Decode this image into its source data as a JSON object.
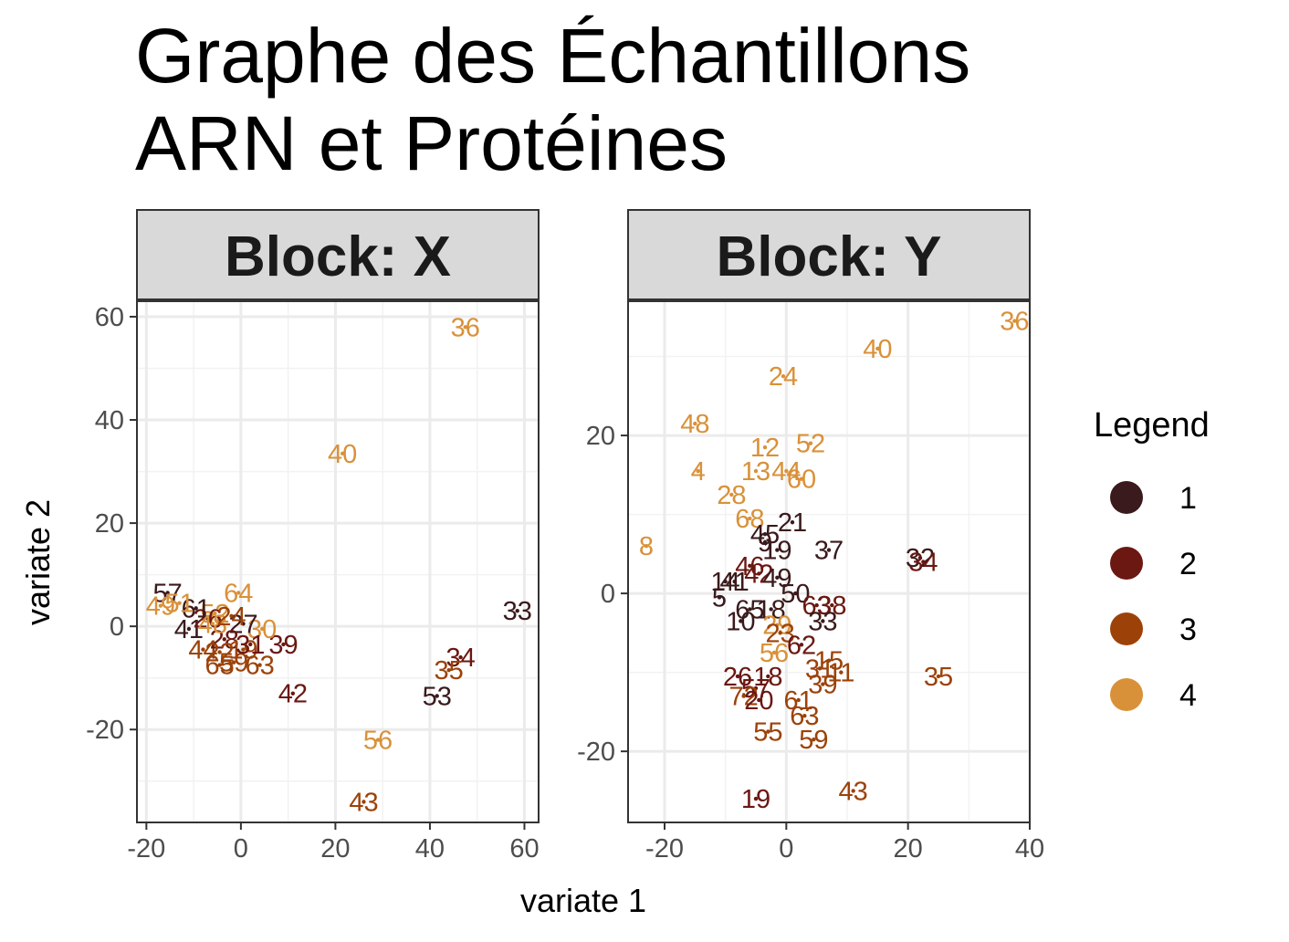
{
  "chart_data": {
    "type": "scatter",
    "title_lines": [
      "Graphe des Échantillons",
      "ARN et Protéines"
    ],
    "xlabel": "variate 1",
    "ylabel": "variate 2",
    "grid": true,
    "legend": {
      "title": "Legend",
      "placement": "right",
      "entries": [
        {
          "label": "1",
          "color": "#3a1a1c"
        },
        {
          "label": "2",
          "color": "#6b1712"
        },
        {
          "label": "3",
          "color": "#9c4209"
        },
        {
          "label": "4",
          "color": "#d99139"
        }
      ]
    },
    "panels": [
      {
        "strip": "Block: X",
        "xlim": [
          -22,
          63
        ],
        "ylim": [
          -38,
          63
        ],
        "xticks": [
          -20,
          0,
          20,
          40,
          60
        ],
        "xtick_labels": [
          "-20",
          "0",
          "20",
          "40",
          "60"
        ],
        "yticks": [
          -20,
          0,
          20,
          40,
          60
        ],
        "ytick_labels": [
          "-20",
          "0",
          "20",
          "40",
          "60"
        ],
        "points": [
          {
            "label": "36",
            "x": 47.5,
            "y": 58,
            "group": 4
          },
          {
            "label": "40",
            "x": 21.5,
            "y": 33.5,
            "group": 4
          },
          {
            "label": "33",
            "x": 58.5,
            "y": 3,
            "group": 1
          },
          {
            "label": "34",
            "x": 46.5,
            "y": -6,
            "group": 2
          },
          {
            "label": "35",
            "x": 44,
            "y": -8.5,
            "group": 3
          },
          {
            "label": "53",
            "x": 41.5,
            "y": -13.5,
            "group": 1
          },
          {
            "label": "42",
            "x": 11,
            "y": -13,
            "group": 2
          },
          {
            "label": "56",
            "x": 29,
            "y": -22,
            "group": 4
          },
          {
            "label": "43",
            "x": 26,
            "y": -34,
            "group": 3
          },
          {
            "label": "39",
            "x": 9,
            "y": -3.5,
            "group": 2
          },
          {
            "label": "30",
            "x": 4.5,
            "y": -0.5,
            "group": 4
          },
          {
            "label": "63",
            "x": 4,
            "y": -7.5,
            "group": 3
          },
          {
            "label": "64",
            "x": -0.5,
            "y": 6.5,
            "group": 4
          },
          {
            "label": "57",
            "x": -15.5,
            "y": 6.5,
            "group": 1
          },
          {
            "label": "49",
            "x": -17,
            "y": 4,
            "group": 4
          },
          {
            "label": "41",
            "x": -11,
            "y": -0.5,
            "group": 1
          },
          {
            "label": "44",
            "x": -8,
            "y": -4.5,
            "group": 3
          },
          {
            "label": "65",
            "x": -4.5,
            "y": -7.5,
            "group": 3
          },
          {
            "label": "59",
            "x": -1.5,
            "y": -7,
            "group": 3
          },
          {
            "label": "27",
            "x": 0.5,
            "y": 0.5,
            "group": 1
          },
          {
            "label": "52",
            "x": -5.5,
            "y": 2.5,
            "group": 4
          },
          {
            "label": "26",
            "x": -7,
            "y": 1.5,
            "group": 2
          },
          {
            "label": "28",
            "x": -3.5,
            "y": -2.5,
            "group": 2
          },
          {
            "label": "19",
            "x": 0.5,
            "y": -4.5,
            "group": 3
          },
          {
            "label": "61",
            "x": -9.5,
            "y": 3.5,
            "group": 1
          },
          {
            "label": "48",
            "x": -6,
            "y": 0.5,
            "group": 4
          },
          {
            "label": "24",
            "x": -2,
            "y": 2,
            "group": 3
          },
          {
            "label": "31",
            "x": 2,
            "y": -3.5,
            "group": 2
          },
          {
            "label": "22",
            "x": -4.5,
            "y": -5,
            "group": 3
          },
          {
            "label": "51",
            "x": -13,
            "y": 4.5,
            "group": 4
          }
        ]
      },
      {
        "strip": "Block: Y",
        "xlim": [
          -26,
          40
        ],
        "ylim": [
          -29,
          37
        ],
        "xticks": [
          -20,
          0,
          20,
          40
        ],
        "xtick_labels": [
          "-20",
          "0",
          "20",
          "40"
        ],
        "yticks": [
          -20,
          0,
          20
        ],
        "ytick_labels": [
          "-20",
          "0",
          "20"
        ],
        "points": [
          {
            "label": "36",
            "x": 37.5,
            "y": 34.5,
            "group": 4
          },
          {
            "label": "40",
            "x": 15,
            "y": 31,
            "group": 4
          },
          {
            "label": "24",
            "x": -0.5,
            "y": 27.5,
            "group": 4
          },
          {
            "label": "48",
            "x": -15,
            "y": 21.5,
            "group": 4
          },
          {
            "label": "52",
            "x": 4,
            "y": 19,
            "group": 4
          },
          {
            "label": "12",
            "x": -3.5,
            "y": 18.5,
            "group": 4
          },
          {
            "label": "4",
            "x": -14.5,
            "y": 15.5,
            "group": 4
          },
          {
            "label": "13",
            "x": -5,
            "y": 15.5,
            "group": 4
          },
          {
            "label": "44",
            "x": 0,
            "y": 15.5,
            "group": 4
          },
          {
            "label": "60",
            "x": 2.5,
            "y": 14.5,
            "group": 4
          },
          {
            "label": "28",
            "x": -9,
            "y": 12.5,
            "group": 4
          },
          {
            "label": "68",
            "x": -6,
            "y": 9.5,
            "group": 4
          },
          {
            "label": "21",
            "x": 1,
            "y": 9,
            "group": 1
          },
          {
            "label": "45",
            "x": -3.5,
            "y": 7.5,
            "group": 1
          },
          {
            "label": "8",
            "x": -23,
            "y": 6,
            "group": 4
          },
          {
            "label": "9",
            "x": -3.5,
            "y": 6.5,
            "group": 1
          },
          {
            "label": "19",
            "x": -1.5,
            "y": 5.5,
            "group": 1
          },
          {
            "label": "37",
            "x": 7,
            "y": 5.5,
            "group": 1
          },
          {
            "label": "32",
            "x": 22,
            "y": 4.5,
            "group": 1
          },
          {
            "label": "34",
            "x": 22.5,
            "y": 4,
            "group": 2
          },
          {
            "label": "46",
            "x": -6,
            "y": 3.5,
            "group": 2
          },
          {
            "label": "42",
            "x": -4.5,
            "y": 2.5,
            "group": 2
          },
          {
            "label": "49",
            "x": -1.5,
            "y": 2,
            "group": 1
          },
          {
            "label": "14",
            "x": -10,
            "y": 1.5,
            "group": 1
          },
          {
            "label": "41",
            "x": -8.5,
            "y": 1.5,
            "group": 1
          },
          {
            "label": "5",
            "x": -11,
            "y": -0.5,
            "group": 1
          },
          {
            "label": "50",
            "x": 1.5,
            "y": 0,
            "group": 1
          },
          {
            "label": "63",
            "x": 5,
            "y": -1.5,
            "group": 2
          },
          {
            "label": "38",
            "x": 7.5,
            "y": -1.5,
            "group": 2
          },
          {
            "label": "65",
            "x": -6,
            "y": -2,
            "group": 1
          },
          {
            "label": "18",
            "x": -2.5,
            "y": -2,
            "group": 1
          },
          {
            "label": "33",
            "x": 6,
            "y": -3.5,
            "group": 1
          },
          {
            "label": "10",
            "x": -7.5,
            "y": -3.5,
            "group": 1
          },
          {
            "label": "29",
            "x": -1.5,
            "y": -4,
            "group": 4
          },
          {
            "label": "23",
            "x": -1,
            "y": -5,
            "group": 3
          },
          {
            "label": "62",
            "x": 2.5,
            "y": -6.5,
            "group": 2
          },
          {
            "label": "56",
            "x": -2,
            "y": -7.5,
            "group": 4
          },
          {
            "label": "15",
            "x": 7,
            "y": -8.5,
            "group": 3
          },
          {
            "label": "31",
            "x": 5.5,
            "y": -9.5,
            "group": 3
          },
          {
            "label": "11",
            "x": 9,
            "y": -10,
            "group": 3
          },
          {
            "label": "35",
            "x": 25,
            "y": -10.5,
            "group": 3
          },
          {
            "label": "26",
            "x": -8,
            "y": -10.5,
            "group": 2
          },
          {
            "label": "18",
            "x": -3,
            "y": -10.5,
            "group": 2
          },
          {
            "label": "39",
            "x": 6,
            "y": -11.5,
            "group": 3
          },
          {
            "label": "57",
            "x": -5,
            "y": -12,
            "group": 2
          },
          {
            "label": "72",
            "x": -7,
            "y": -13,
            "group": 3
          },
          {
            "label": "20",
            "x": -4.5,
            "y": -13.5,
            "group": 2
          },
          {
            "label": "61",
            "x": 2,
            "y": -13.5,
            "group": 3
          },
          {
            "label": "63",
            "x": 3,
            "y": -15.5,
            "group": 3
          },
          {
            "label": "55",
            "x": -3,
            "y": -17.5,
            "group": 3
          },
          {
            "label": "59",
            "x": 4.5,
            "y": -18.5,
            "group": 3
          },
          {
            "label": "43",
            "x": 11,
            "y": -25,
            "group": 3
          },
          {
            "label": "19",
            "x": -5,
            "y": -26,
            "group": 2
          }
        ]
      }
    ]
  }
}
